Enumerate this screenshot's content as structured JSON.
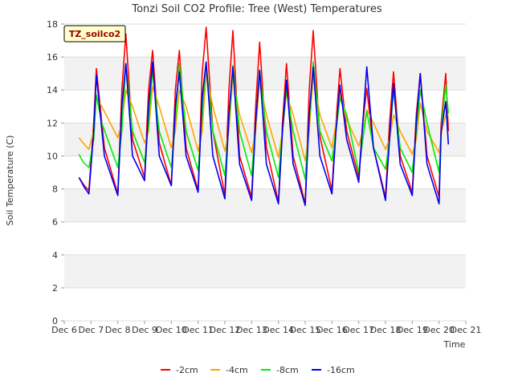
{
  "chart_data": {
    "type": "line",
    "title": "Tonzi Soil CO2 Profile: Tree (West) Temperatures",
    "xlabel": "Time",
    "ylabel": "Soil Temperature (C)",
    "site_label": "TZ_soilco2",
    "ylim": [
      0,
      18
    ],
    "xlim": [
      6,
      21
    ],
    "y_ticks": [
      0,
      2,
      4,
      6,
      8,
      10,
      12,
      14,
      16,
      18
    ],
    "x_ticks": [
      {
        "value": 6,
        "label": "Dec 6"
      },
      {
        "value": 7,
        "label": "Dec 7"
      },
      {
        "value": 8,
        "label": "Dec 8"
      },
      {
        "value": 9,
        "label": "Dec 9"
      },
      {
        "value": 10,
        "label": "Dec 10"
      },
      {
        "value": 11,
        "label": "Dec 11"
      },
      {
        "value": 12,
        "label": "Dec 12"
      },
      {
        "value": 13,
        "label": "Dec 13"
      },
      {
        "value": 14,
        "label": "Dec 14"
      },
      {
        "value": 15,
        "label": "Dec 15"
      },
      {
        "value": 16,
        "label": "Dec 16"
      },
      {
        "value": 17,
        "label": "Dec 17"
      },
      {
        "value": 18,
        "label": "Dec 18"
      },
      {
        "value": 19,
        "label": "Dec 19"
      },
      {
        "value": 20,
        "label": "Dec 20"
      },
      {
        "value": 21,
        "label": "Dec 21"
      }
    ],
    "grid": "horizontal bands",
    "legend_position": "bottom-center",
    "series": [
      {
        "name": "-2cm",
        "color": "#ff0000",
        "x": [
          6.55,
          6.75,
          6.92,
          7.1,
          7.2,
          7.5,
          8.0,
          8.15,
          8.3,
          8.55,
          9.0,
          9.15,
          9.3,
          9.55,
          10.0,
          10.15,
          10.3,
          10.55,
          11.0,
          11.15,
          11.3,
          11.55,
          12.0,
          12.15,
          12.3,
          12.55,
          13.0,
          13.15,
          13.3,
          13.55,
          14.0,
          14.15,
          14.3,
          14.55,
          15.0,
          15.15,
          15.3,
          15.55,
          16.0,
          16.15,
          16.3,
          16.55,
          17.0,
          17.15,
          17.3,
          17.55,
          18.0,
          18.15,
          18.3,
          18.55,
          19.0,
          19.15,
          19.3,
          19.55,
          20.0,
          20.08,
          20.25,
          20.35
        ],
        "y": [
          8.7,
          8.2,
          7.9,
          12.0,
          15.3,
          10.5,
          7.7,
          14.0,
          17.4,
          11.0,
          8.7,
          14.0,
          16.4,
          10.8,
          8.2,
          14.0,
          16.4,
          10.5,
          7.9,
          15.0,
          17.8,
          11.5,
          7.6,
          14.0,
          17.6,
          10.0,
          7.5,
          13.0,
          16.9,
          10.5,
          7.2,
          12.0,
          15.6,
          10.0,
          7.1,
          14.0,
          17.6,
          11.2,
          7.9,
          12.0,
          15.3,
          11.5,
          8.7,
          12.0,
          14.1,
          10.5,
          7.5,
          12.0,
          15.1,
          10.0,
          7.8,
          12.5,
          15.0,
          10.0,
          7.5,
          12.0,
          15.0,
          11.5
        ]
      },
      {
        "name": "-4cm",
        "color": "#ffa500",
        "x": [
          6.55,
          6.7,
          6.92,
          7.1,
          7.2,
          7.4,
          8.0,
          8.15,
          8.3,
          8.55,
          9.0,
          9.15,
          9.3,
          9.55,
          10.0,
          10.15,
          10.3,
          10.55,
          11.0,
          11.15,
          11.3,
          11.55,
          12.0,
          12.15,
          12.3,
          12.55,
          13.0,
          13.15,
          13.3,
          13.55,
          14.0,
          14.15,
          14.3,
          14.55,
          15.0,
          15.15,
          15.3,
          15.55,
          16.0,
          16.15,
          16.3,
          16.55,
          17.0,
          17.15,
          17.3,
          17.55,
          18.0,
          18.15,
          18.3,
          18.55,
          19.0,
          19.15,
          19.3,
          19.55,
          20.0,
          20.1,
          20.25,
          20.35
        ],
        "y": [
          11.1,
          10.8,
          10.4,
          11.5,
          13.6,
          13.0,
          11.1,
          12.0,
          14.0,
          13.0,
          10.8,
          11.5,
          14.2,
          13.0,
          10.5,
          11.5,
          14.0,
          13.0,
          10.3,
          11.5,
          15.0,
          13.0,
          10.3,
          11.5,
          14.8,
          12.5,
          10.2,
          11.5,
          14.5,
          12.5,
          9.9,
          11.5,
          13.8,
          12.5,
          9.7,
          11.5,
          14.8,
          12.5,
          10.5,
          12.0,
          13.8,
          12.2,
          10.6,
          11.5,
          12.8,
          12.0,
          10.4,
          11.0,
          12.5,
          11.5,
          10.1,
          11.0,
          13.2,
          11.5,
          10.2,
          11.5,
          12.5,
          12.5
        ]
      },
      {
        "name": "-8cm",
        "color": "#00ee00",
        "x": [
          6.55,
          6.72,
          6.92,
          7.1,
          7.2,
          7.4,
          8.0,
          8.15,
          8.3,
          8.55,
          9.0,
          9.15,
          9.3,
          9.55,
          10.0,
          10.15,
          10.3,
          10.55,
          11.0,
          11.15,
          11.3,
          11.55,
          12.0,
          12.15,
          12.3,
          12.55,
          13.0,
          13.15,
          13.3,
          13.55,
          14.0,
          14.15,
          14.3,
          14.55,
          15.0,
          15.15,
          15.3,
          15.55,
          16.0,
          16.15,
          16.3,
          16.55,
          17.0,
          17.15,
          17.3,
          17.55,
          18.0,
          18.15,
          18.3,
          18.55,
          19.0,
          19.15,
          19.3,
          19.55,
          20.0,
          20.1,
          20.25,
          20.35
        ],
        "y": [
          10.1,
          9.6,
          9.3,
          11.0,
          13.7,
          12.0,
          9.3,
          11.5,
          15.6,
          11.5,
          9.6,
          12.0,
          15.2,
          11.5,
          9.3,
          12.0,
          15.6,
          11.5,
          9.1,
          12.5,
          15.6,
          11.5,
          8.8,
          12.0,
          15.5,
          11.5,
          8.8,
          12.0,
          15.2,
          11.5,
          8.7,
          11.5,
          14.0,
          11.5,
          8.6,
          12.0,
          15.7,
          11.5,
          9.7,
          11.5,
          13.5,
          12.5,
          9.0,
          11.0,
          12.7,
          10.5,
          9.2,
          11.0,
          14.0,
          10.5,
          9.0,
          11.5,
          14.0,
          12.0,
          9.0,
          12.0,
          14.3,
          12.6
        ]
      },
      {
        "name": "-16cm",
        "color": "#0000ee",
        "x": [
          6.55,
          6.75,
          6.92,
          7.1,
          7.2,
          7.5,
          8.0,
          8.15,
          8.3,
          8.55,
          9.0,
          9.15,
          9.3,
          9.55,
          10.0,
          10.15,
          10.3,
          10.55,
          11.0,
          11.15,
          11.3,
          11.55,
          12.0,
          12.15,
          12.3,
          12.55,
          13.0,
          13.15,
          13.3,
          13.55,
          14.0,
          14.15,
          14.3,
          14.55,
          15.0,
          15.15,
          15.3,
          15.55,
          16.0,
          16.15,
          16.3,
          16.55,
          17.0,
          17.15,
          17.3,
          17.55,
          18.0,
          18.15,
          18.3,
          18.55,
          19.0,
          19.15,
          19.3,
          19.55,
          20.0,
          20.08,
          20.25,
          20.35
        ],
        "y": [
          8.7,
          8.1,
          7.7,
          11.5,
          14.9,
          10.0,
          7.6,
          13.0,
          15.6,
          10.0,
          8.5,
          13.0,
          15.7,
          10.0,
          8.2,
          13.0,
          15.1,
          10.0,
          7.8,
          13.5,
          15.7,
          10.0,
          7.4,
          12.5,
          15.4,
          9.5,
          7.3,
          12.0,
          15.2,
          9.5,
          7.1,
          11.5,
          14.6,
          9.5,
          7.0,
          12.5,
          15.4,
          10.0,
          7.7,
          11.5,
          14.3,
          11.0,
          8.4,
          12.0,
          15.4,
          10.5,
          7.3,
          11.0,
          14.4,
          9.5,
          7.6,
          12.0,
          15.0,
          9.5,
          7.1,
          11.5,
          13.3,
          10.7
        ]
      }
    ]
  }
}
